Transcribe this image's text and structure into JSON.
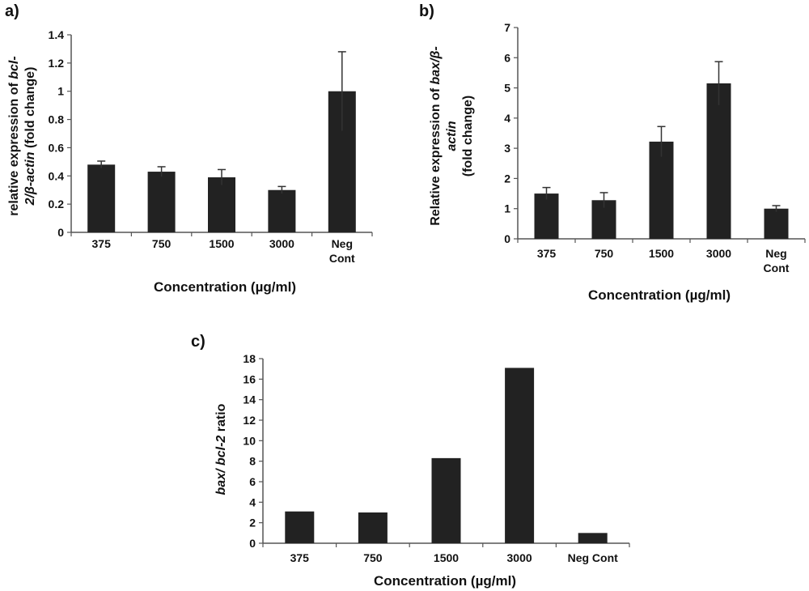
{
  "chart_data": [
    {
      "type": "bar",
      "panel_label": "a)",
      "categories": [
        "375",
        "750",
        "1500",
        "3000",
        "Neg Cont"
      ],
      "category_lines": [
        [
          "375"
        ],
        [
          "750"
        ],
        [
          "1500"
        ],
        [
          "3000"
        ],
        [
          "Neg",
          "Cont"
        ]
      ],
      "values": [
        0.48,
        0.43,
        0.39,
        0.3,
        1.0
      ],
      "errors": [
        0.025,
        0.035,
        0.055,
        0.025,
        0.28
      ],
      "xlabel": "Concentration (µg/ml)",
      "ylabel_lines": [
        [
          {
            "t": "relative expression of ",
            "i": false
          },
          {
            "t": "bcl-",
            "i": true
          }
        ],
        [
          {
            "t": "2/β-actin",
            "i": true
          },
          {
            "t": " (fold change)",
            "i": false
          }
        ]
      ],
      "ylim": [
        0,
        1.4
      ],
      "yticks": [
        0,
        0.2,
        0.4,
        0.6,
        0.8,
        1,
        1.2,
        1.4
      ],
      "grid": false,
      "bar_color": "#222222"
    },
    {
      "type": "bar",
      "panel_label": "b)",
      "categories": [
        "375",
        "750",
        "1500",
        "3000",
        "Neg Cont"
      ],
      "category_lines": [
        [
          "375"
        ],
        [
          "750"
        ],
        [
          "1500"
        ],
        [
          "3000"
        ],
        [
          "Neg",
          "Cont"
        ]
      ],
      "values": [
        1.5,
        1.28,
        3.22,
        5.15,
        1.0
      ],
      "errors": [
        0.2,
        0.25,
        0.5,
        0.72,
        0.1
      ],
      "xlabel": "Concentration (µg/ml)",
      "ylabel_lines": [
        [
          {
            "t": "Relative expression of ",
            "i": false
          },
          {
            "t": "bax/β-",
            "i": true
          }
        ],
        [
          {
            "t": "actin",
            "i": true
          }
        ],
        [
          {
            "t": "(fold change)",
            "i": false
          }
        ]
      ],
      "ylim": [
        0,
        7
      ],
      "yticks": [
        0,
        1,
        2,
        3,
        4,
        5,
        6,
        7
      ],
      "grid": false,
      "bar_color": "#222222"
    },
    {
      "type": "bar",
      "panel_label": "c)",
      "categories": [
        "375",
        "750",
        "1500",
        "3000",
        "Neg Cont"
      ],
      "category_lines": [
        [
          "375"
        ],
        [
          "750"
        ],
        [
          "1500"
        ],
        [
          "3000"
        ],
        [
          "Neg Cont"
        ]
      ],
      "values": [
        3.1,
        3.0,
        8.3,
        17.1,
        1.0
      ],
      "errors": null,
      "xlabel": "Concentration (µg/ml)",
      "ylabel_lines": [
        [
          {
            "t": "bax/ bcl-2",
            "i": true
          },
          {
            "t": " ratio",
            "i": false
          }
        ]
      ],
      "ylim": [
        0,
        18
      ],
      "yticks": [
        0,
        2,
        4,
        6,
        8,
        10,
        12,
        14,
        16,
        18
      ],
      "grid": false,
      "bar_color": "#222222"
    }
  ]
}
